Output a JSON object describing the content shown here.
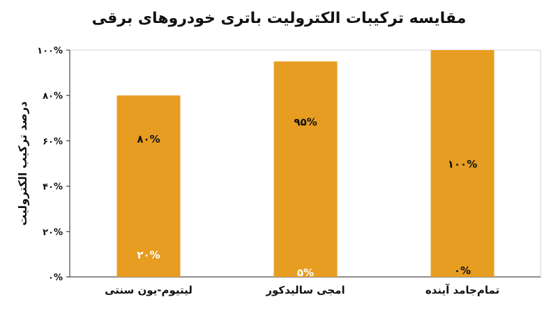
{
  "chart_data": {
    "type": "bar",
    "stacked": true,
    "title": "مقایسه ترکیبات الکترولیت باتری خودروهای برقی",
    "xlabel": "",
    "ylabel": "درصد ترکیب الکترولیت",
    "ylim": [
      0,
      100
    ],
    "yticks": [
      0,
      20,
      40,
      60,
      80,
      100
    ],
    "ytick_labels": [
      "۰%",
      "۲۰%",
      "۴۰%",
      "۶۰%",
      "۸۰%",
      "۱۰۰%"
    ],
    "categories": [
      "لیتیوم-یون سنتی",
      "امجی سالیدکور",
      "تمام‌جامد آینده"
    ],
    "series": [
      {
        "color": "#0b4f8a",
        "values": [
          20,
          5,
          0
        ],
        "labels": [
          "۲۰%",
          "۵%",
          "۰%"
        ]
      },
      {
        "color": "#e79d21",
        "values": [
          80,
          95,
          100
        ],
        "labels": [
          "۸۰%",
          "۹۵%",
          "۱۰۰%"
        ]
      }
    ],
    "grid": false,
    "legend": "none"
  }
}
